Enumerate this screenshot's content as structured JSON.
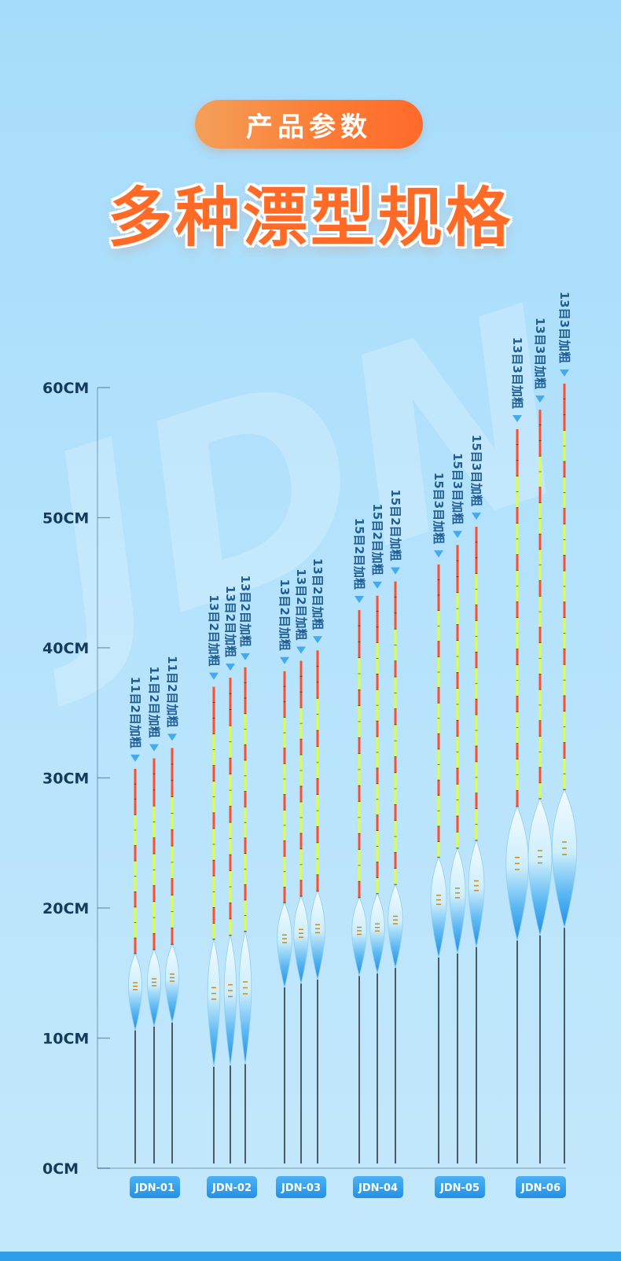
{
  "badge": {
    "label": "产品参数"
  },
  "headline": "多种漂型规格",
  "watermark": "JDN",
  "axis": {
    "unit": "CM",
    "ticks": [
      {
        "value": 0,
        "label": "0CM"
      },
      {
        "value": 10,
        "label": "10CM"
      },
      {
        "value": 20,
        "label": "20CM"
      },
      {
        "value": 30,
        "label": "30CM"
      },
      {
        "value": 40,
        "label": "40CM"
      },
      {
        "value": 50,
        "label": "50CM"
      },
      {
        "value": 60,
        "label": "60CM"
      }
    ]
  },
  "colors": {
    "accent": "#ff6a26",
    "axis": "#143a5c",
    "tip_red": "#ff4e2b",
    "tip_yellow": "#dfff3a",
    "body_blue": "#2f9de9",
    "badge_blue": "#2e9ee8"
  },
  "groups": [
    {
      "model": "JDN-01",
      "floats": [
        {
          "spec": "11目2目加粗",
          "length_cm": 30.7,
          "body_top_cm": 16.5,
          "body_bottom_cm": 10.6
        },
        {
          "spec": "11目2目加粗",
          "length_cm": 31.5,
          "body_top_cm": 16.8,
          "body_bottom_cm": 10.9
        },
        {
          "spec": "11目2目加粗",
          "length_cm": 32.3,
          "body_top_cm": 17.2,
          "body_bottom_cm": 11.2
        }
      ]
    },
    {
      "model": "JDN-02",
      "floats": [
        {
          "spec": "13目2目加粗",
          "length_cm": 37.0,
          "body_top_cm": 17.6,
          "body_bottom_cm": 7.8
        },
        {
          "spec": "13目2目加粗",
          "length_cm": 37.7,
          "body_top_cm": 17.9,
          "body_bottom_cm": 7.9
        },
        {
          "spec": "13目2目加粗",
          "length_cm": 38.5,
          "body_top_cm": 18.2,
          "body_bottom_cm": 8.0
        }
      ]
    },
    {
      "model": "JDN-03",
      "floats": [
        {
          "spec": "13目2目加粗",
          "length_cm": 38.2,
          "body_top_cm": 20.4,
          "body_bottom_cm": 13.9
        },
        {
          "spec": "13目2目加粗",
          "length_cm": 39.0,
          "body_top_cm": 20.9,
          "body_bottom_cm": 14.2
        },
        {
          "spec": "13目2目加粗",
          "length_cm": 39.8,
          "body_top_cm": 21.3,
          "body_bottom_cm": 14.5
        }
      ]
    },
    {
      "model": "JDN-04",
      "floats": [
        {
          "spec": "15目2目加粗",
          "length_cm": 42.9,
          "body_top_cm": 20.8,
          "body_bottom_cm": 14.8
        },
        {
          "spec": "15目2目加粗",
          "length_cm": 44.0,
          "body_top_cm": 21.1,
          "body_bottom_cm": 15.0
        },
        {
          "spec": "15目2目加粗",
          "length_cm": 45.1,
          "body_top_cm": 21.8,
          "body_bottom_cm": 15.4
        }
      ]
    },
    {
      "model": "JDN-05",
      "floats": [
        {
          "spec": "15目3目加粗",
          "length_cm": 46.4,
          "body_top_cm": 23.9,
          "body_bottom_cm": 16.2
        },
        {
          "spec": "15目3目加粗",
          "length_cm": 47.9,
          "body_top_cm": 24.6,
          "body_bottom_cm": 16.5
        },
        {
          "spec": "15目3目加粗",
          "length_cm": 49.3,
          "body_top_cm": 25.2,
          "body_bottom_cm": 17.0
        }
      ]
    },
    {
      "model": "JDN-06",
      "floats": [
        {
          "spec": "13目3目加粗",
          "length_cm": 56.8,
          "body_top_cm": 27.8,
          "body_bottom_cm": 17.5
        },
        {
          "spec": "13目3目加粗",
          "length_cm": 58.3,
          "body_top_cm": 28.4,
          "body_bottom_cm": 17.9
        },
        {
          "spec": "13目3目加粗",
          "length_cm": 60.3,
          "body_top_cm": 29.1,
          "body_bottom_cm": 18.5
        }
      ]
    }
  ]
}
